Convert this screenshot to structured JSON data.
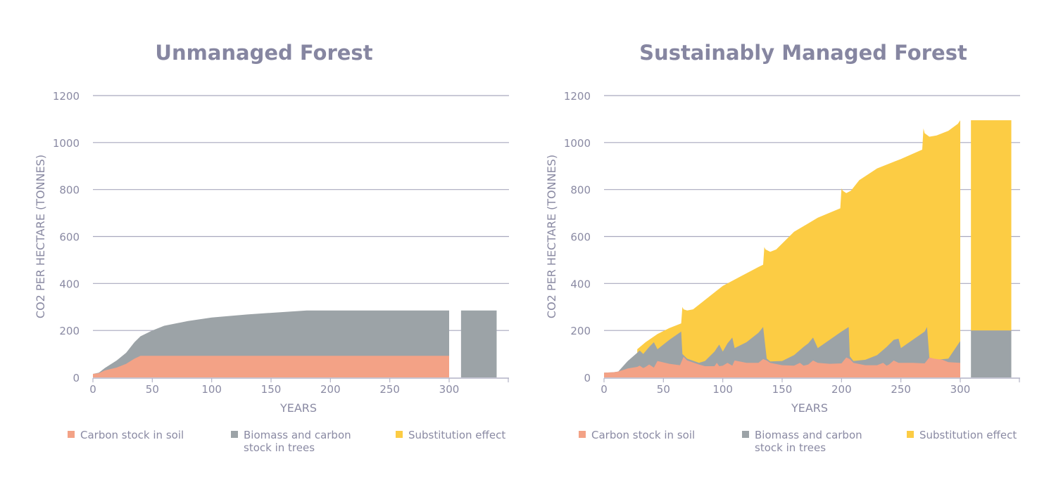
{
  "colors": {
    "soil": "#f3a286",
    "trees": "#9ca3a7",
    "substitution": "#fccc44",
    "grid": "#a9a9be",
    "text": "#8a8aa3",
    "title": "#8686a1"
  },
  "legend": [
    {
      "key": "soil",
      "label_line1": "Carbon stock in soil",
      "label_line2": ""
    },
    {
      "key": "trees",
      "label_line1": "Biomass and carbon",
      "label_line2": "stock in trees"
    },
    {
      "key": "substitution",
      "label_line1": "Substitution effect",
      "label_line2": ""
    }
  ],
  "chart_data": [
    {
      "type": "area",
      "title": "Unmanaged Forest",
      "xlabel": "YEARS",
      "ylabel": "CO2 PER HECTARE (TONNES)",
      "xlim": [
        0,
        350
      ],
      "ylim": [
        0,
        1200
      ],
      "xticks": [
        0,
        50,
        100,
        150,
        200,
        250,
        300
      ],
      "yticks": [
        0,
        200,
        400,
        600,
        800,
        1000,
        1200
      ],
      "grid": true,
      "legend_position": "bottom",
      "stacked": true,
      "series": [
        {
          "name": "Carbon stock in soil",
          "key": "soil",
          "x": [
            0,
            5,
            10,
            20,
            28,
            35,
            40,
            42,
            300
          ],
          "values": [
            15,
            18,
            30,
            42,
            58,
            80,
            92,
            92,
            92
          ]
        },
        {
          "name": "Biomass and carbon stock in trees",
          "key": "trees",
          "x": [
            0,
            5,
            10,
            20,
            28,
            35,
            40,
            50,
            60,
            80,
            100,
            130,
            150,
            180,
            300
          ],
          "cumulative_values": [
            15,
            20,
            40,
            72,
            105,
            150,
            175,
            200,
            220,
            240,
            255,
            268,
            275,
            285,
            285
          ]
        }
      ],
      "final_bar": {
        "x_range": [
          310,
          340
        ],
        "segments": [
          {
            "key": "trees",
            "from": 0,
            "to": 285
          }
        ]
      }
    },
    {
      "type": "area",
      "title": "Sustainably Managed Forest",
      "xlabel": "YEARS",
      "ylabel": "CO2 PER HECTARE (TONNES)",
      "xlim": [
        0,
        350
      ],
      "ylim": [
        0,
        1200
      ],
      "xticks": [
        0,
        50,
        100,
        150,
        200,
        250,
        300
      ],
      "yticks": [
        0,
        200,
        400,
        600,
        800,
        1000,
        1200
      ],
      "grid": true,
      "legend_position": "bottom",
      "stacked": true,
      "series": [
        {
          "name": "Carbon stock in soil",
          "key": "soil",
          "x": [
            0,
            8,
            12,
            20,
            28,
            30,
            33,
            35,
            38,
            42,
            45,
            55,
            64,
            67,
            70,
            80,
            85,
            93,
            95,
            97,
            100,
            104,
            108,
            110,
            120,
            130,
            134,
            137,
            140,
            150,
            160,
            165,
            168,
            172,
            176,
            180,
            190,
            200,
            204,
            207,
            210,
            220,
            230,
            235,
            238,
            240,
            244,
            248,
            250,
            260,
            270,
            274,
            278,
            285,
            290,
            300
          ],
          "values": [
            20,
            22,
            25,
            38,
            45,
            50,
            40,
            45,
            55,
            42,
            70,
            58,
            52,
            88,
            72,
            55,
            48,
            48,
            62,
            48,
            50,
            62,
            50,
            72,
            62,
            62,
            78,
            72,
            62,
            52,
            50,
            62,
            50,
            55,
            72,
            62,
            58,
            60,
            85,
            78,
            62,
            52,
            52,
            62,
            50,
            55,
            72,
            62,
            62,
            62,
            60,
            85,
            80,
            75,
            65,
            62
          ]
        },
        {
          "name": "Biomass and carbon stock in trees",
          "key": "trees",
          "x": [
            0,
            8,
            12,
            20,
            28,
            30,
            33,
            38,
            42,
            45,
            55,
            65,
            66,
            70,
            80,
            85,
            93,
            97,
            100,
            104,
            108,
            110,
            120,
            130,
            134,
            137,
            140,
            150,
            160,
            168,
            172,
            176,
            180,
            190,
            200,
            206,
            207,
            210,
            220,
            230,
            238,
            244,
            248,
            250,
            260,
            270,
            272,
            274,
            280,
            290,
            300
          ],
          "cumulative_values": [
            20,
            22,
            25,
            70,
            105,
            115,
            100,
            130,
            150,
            120,
            160,
            195,
            100,
            80,
            62,
            70,
            110,
            140,
            110,
            145,
            170,
            125,
            150,
            190,
            215,
            80,
            68,
            70,
            95,
            130,
            145,
            170,
            125,
            160,
            195,
            215,
            90,
            70,
            75,
            95,
            130,
            160,
            165,
            125,
            160,
            195,
            215,
            85,
            75,
            80,
            155
          ]
        },
        {
          "name": "Substitution effect",
          "key": "substitution",
          "x": [
            28,
            35,
            45,
            55,
            65,
            66,
            67,
            70,
            75,
            85,
            100,
            115,
            130,
            134,
            135,
            136,
            140,
            145,
            160,
            180,
            199,
            200,
            201,
            204,
            208,
            215,
            230,
            250,
            268,
            269,
            270,
            274,
            280,
            290,
            298,
            300
          ],
          "cumulative_values": [
            120,
            150,
            185,
            210,
            230,
            300,
            290,
            285,
            290,
            330,
            390,
            430,
            470,
            480,
            555,
            545,
            535,
            545,
            620,
            680,
            720,
            805,
            795,
            785,
            795,
            840,
            890,
            930,
            970,
            1060,
            1040,
            1025,
            1030,
            1050,
            1080,
            1095
          ]
        }
      ],
      "final_bar": {
        "x_range": [
          309,
          343
        ],
        "segments": [
          {
            "key": "trees",
            "from": 0,
            "to": 200
          },
          {
            "key": "substitution",
            "from": 200,
            "to": 1095
          }
        ]
      }
    }
  ]
}
